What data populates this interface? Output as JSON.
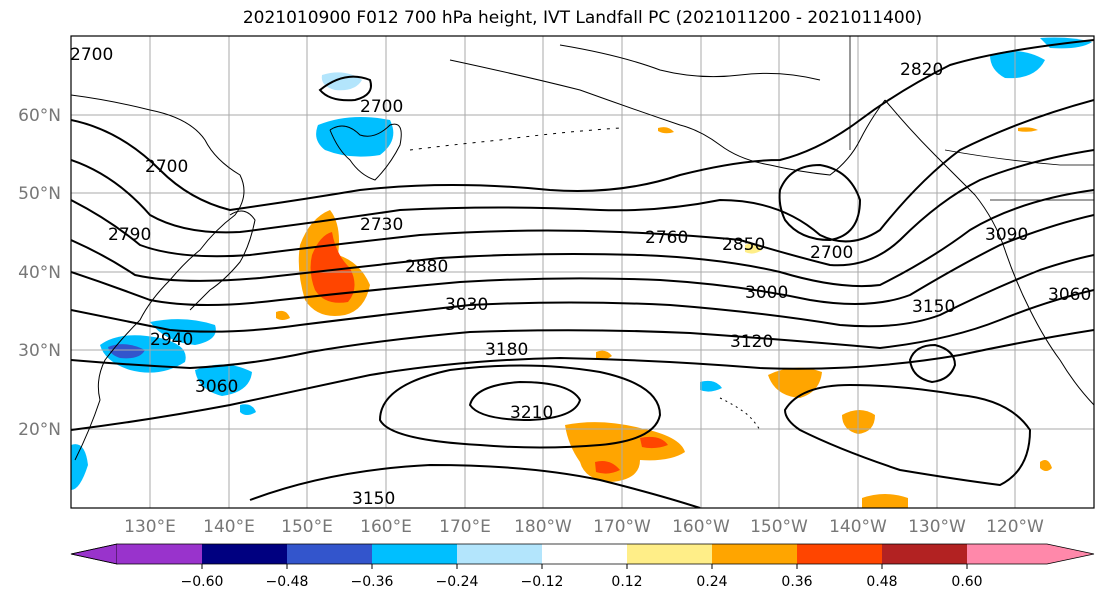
{
  "title": "2021010900 F012 700 hPa height, IVT Landfall PC (2021011200 - 2021011400)",
  "lat_labels": [
    "60°N",
    "50°N",
    "40°N",
    "30°N",
    "20°N"
  ],
  "lon_labels": [
    "130°E",
    "140°E",
    "150°E",
    "160°E",
    "170°E",
    "180°W",
    "170°W",
    "160°W",
    "150°W",
    "140°W",
    "130°W",
    "120°W"
  ],
  "contour_labels": [
    "2700",
    "2700",
    "2700",
    "2790",
    "2820",
    "2730",
    "2880",
    "2760",
    "2850",
    "2700",
    "3030",
    "3000",
    "3090",
    "3060",
    "3150",
    "3180",
    "3120",
    "2940",
    "3060",
    "3210",
    "3150"
  ],
  "colorbar": {
    "colors": [
      "#9933cc",
      "#000080",
      "#3355cc",
      "#00bfff",
      "#b3e5fc",
      "#ffffff",
      "#ffee88",
      "#ffa500",
      "#ff4500",
      "#b22222",
      "#ff88aa"
    ],
    "tick_labels": [
      "−0.60",
      "−0.48",
      "−0.36",
      "−0.24",
      "−0.12",
      "0.12",
      "0.24",
      "0.36",
      "0.48",
      "0.60"
    ]
  }
}
